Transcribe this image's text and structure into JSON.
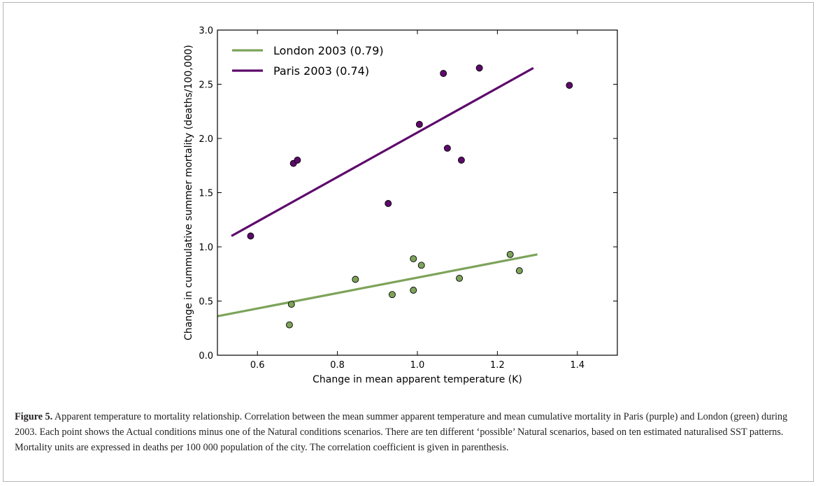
{
  "chart_data": {
    "type": "scatter",
    "xlabel": "Change in mean apparent temperature (K)",
    "ylabel": "Change in cummulative summer mortality (deaths/100,000)",
    "xlim": [
      0.5,
      1.5
    ],
    "ylim": [
      0.0,
      3.0
    ],
    "xticks": [
      "0.6",
      "0.8",
      "1.0",
      "1.2",
      "1.4"
    ],
    "yticks": [
      "0.0",
      "0.5",
      "1.0",
      "1.5",
      "2.0",
      "2.5",
      "3.0"
    ],
    "grid": false,
    "legend_position": "top-left",
    "series": [
      {
        "name": "London 2003 (0.79)",
        "color": "#7da35a",
        "points": [
          {
            "x": 0.68,
            "y": 0.28
          },
          {
            "x": 0.685,
            "y": 0.47
          },
          {
            "x": 0.845,
            "y": 0.7
          },
          {
            "x": 0.937,
            "y": 0.56
          },
          {
            "x": 0.99,
            "y": 0.6
          },
          {
            "x": 0.99,
            "y": 0.89
          },
          {
            "x": 1.01,
            "y": 0.83
          },
          {
            "x": 1.105,
            "y": 0.71
          },
          {
            "x": 1.232,
            "y": 0.93
          },
          {
            "x": 1.255,
            "y": 0.78
          }
        ],
        "fit_line": [
          {
            "x": 0.5,
            "y": 0.36
          },
          {
            "x": 1.3,
            "y": 0.93
          }
        ]
      },
      {
        "name": "Paris 2003 (0.74)",
        "color": "#5d0a6b",
        "points": [
          {
            "x": 0.583,
            "y": 1.1
          },
          {
            "x": 0.69,
            "y": 1.77
          },
          {
            "x": 0.7,
            "y": 1.8
          },
          {
            "x": 0.927,
            "y": 1.4
          },
          {
            "x": 1.005,
            "y": 2.13
          },
          {
            "x": 1.065,
            "y": 2.6
          },
          {
            "x": 1.075,
            "y": 1.91
          },
          {
            "x": 1.11,
            "y": 1.8
          },
          {
            "x": 1.155,
            "y": 2.65
          },
          {
            "x": 1.38,
            "y": 2.49
          }
        ],
        "fit_line": [
          {
            "x": 0.535,
            "y": 1.1
          },
          {
            "x": 1.29,
            "y": 2.65
          }
        ]
      }
    ]
  },
  "caption": {
    "label": "Figure 5.",
    "text": " Apparent temperature to mortality relationship. Correlation between the mean summer apparent temperature and mean cumulative mortality in Paris (purple) and London (green) during 2003. Each point shows the Actual conditions minus one of the Natural conditions scenarios. There are ten different ‘possible’ Natural scenarios, based on ten estimated naturalised SST patterns. Mortality units are expressed in deaths per 100 000 population of the city. The correlation coefficient is given in parenthesis."
  }
}
